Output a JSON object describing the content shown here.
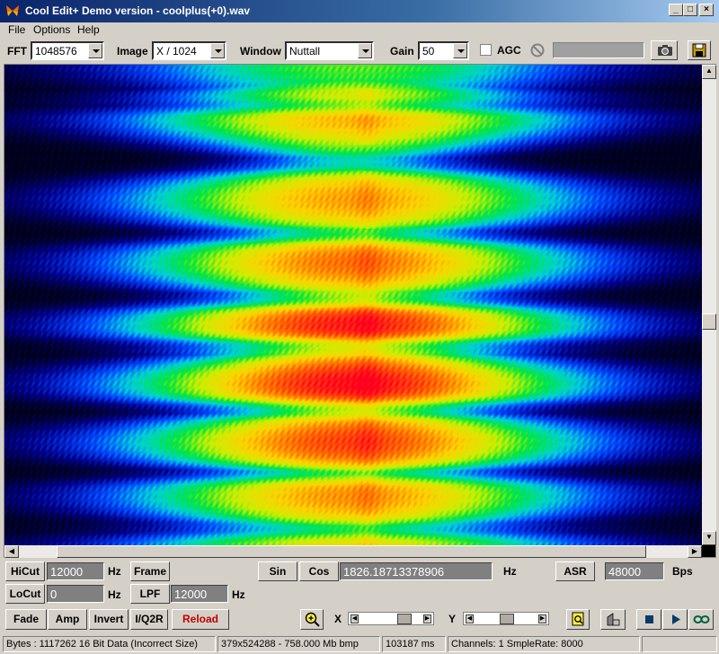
{
  "window": {
    "title": "Cool Edit+  Demo version - coolplus(+0).wav",
    "minimize": "_",
    "maximize": "□",
    "close": "×"
  },
  "menu": {
    "file": "File",
    "options": "Options",
    "help": "Help"
  },
  "toolbar": {
    "fft_label": "FFT",
    "fft_value": "1048576",
    "image_label": "Image",
    "image_value": "X / 1024",
    "window_label": "Window",
    "window_value": "Nuttall",
    "gain_label": "Gain",
    "gain_value": "50",
    "agc_label": "AGC",
    "agc_checked": false,
    "icons": [
      "no-entry-icon",
      "camera-icon",
      "save-disk-icon"
    ]
  },
  "filter": {
    "hicut_label": "HiCut",
    "hicut_value": "12000",
    "locut_label": "LoCut",
    "locut_value": "0",
    "hz": "Hz",
    "frame_label": "Frame",
    "lpf_label": "LPF",
    "lpf_value": "12000"
  },
  "generator": {
    "sin_label": "Sin",
    "cos_label": "Cos",
    "freq_value": "1826.18713378906",
    "hz": "Hz",
    "asr_label": "ASR",
    "asr_value": "48000",
    "bps": "Bps"
  },
  "actions": {
    "fade": "Fade",
    "amp": "Amp",
    "invert": "Invert",
    "iq2r": "I/Q2R",
    "reload": "Reload",
    "reload_color": "#c00000"
  },
  "zoom": {
    "x_label": "X",
    "y_label": "Y",
    "icons": [
      "zoom-in-icon",
      "zoom-fit-icon",
      "scan-icon",
      "stop-icon",
      "play-icon",
      "loop-icon"
    ]
  },
  "status": {
    "bytes": "Bytes : 1117262 16 Bit Data (Incorrect Size)",
    "bmp": "379x524288 - 758.000 Mb bmp",
    "ms": "103187 ms",
    "channels": "Channels: 1  SmpleRate: 8000"
  }
}
